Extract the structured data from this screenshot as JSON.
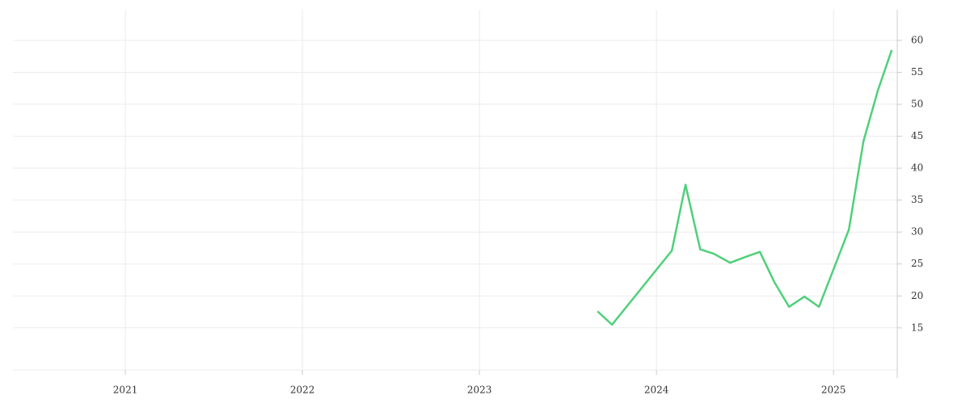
{
  "chart_data": {
    "type": "line",
    "x": [
      2023.667,
      2023.749,
      2024.087,
      2024.164,
      2024.247,
      2024.324,
      2024.416,
      2024.502,
      2024.584,
      2024.667,
      2024.749,
      2024.836,
      2024.918,
      2025.087,
      2025.169,
      2025.251,
      2025.329
    ],
    "series": [
      {
        "color": "#4fd07a",
        "values": [
          17.6,
          15.5,
          27.1,
          37.4,
          27.3,
          26.6,
          25.2,
          26.1,
          26.9,
          22.1,
          18.3,
          19.9,
          18.3,
          30.4,
          44.2,
          52.2,
          58.5
        ]
      }
    ],
    "xlim": [
      2020.365,
      2025.36
    ],
    "xticks": [
      2021,
      2022,
      2023,
      2024,
      2025
    ],
    "ylim": [
      8.4,
      64.8
    ],
    "yticks": [
      15,
      20,
      25,
      30,
      35,
      40,
      45,
      50,
      55,
      60
    ],
    "grid": true
  }
}
